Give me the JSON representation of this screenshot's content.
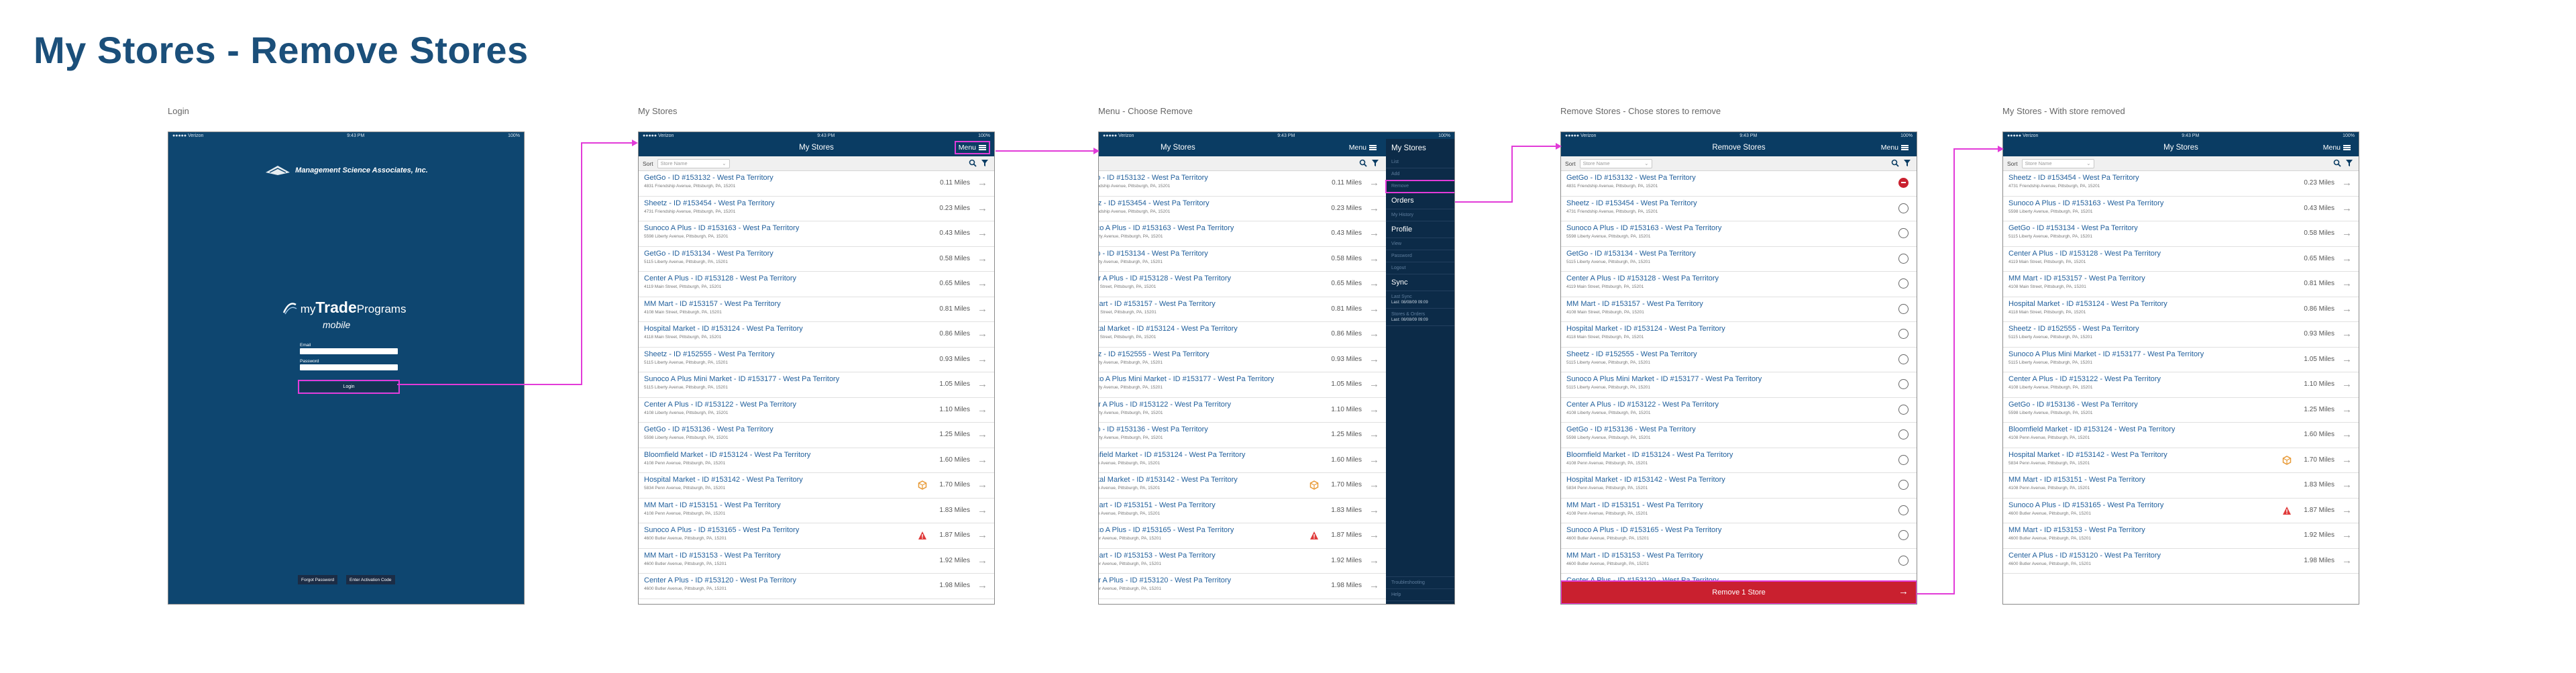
{
  "board_title": "My Stores - Remove Stores",
  "steps": [
    "Login",
    "My Stores",
    "Menu - Choose Remove",
    "Remove Stores - Chose stores to remove",
    "My Stores - With store removed"
  ],
  "status_bar": {
    "carrier": "●●●●● Verizon",
    "time": "9:43 PM",
    "battery": "100%"
  },
  "login": {
    "company": "Management Science Associates, Inc.",
    "brand_pre": "my",
    "brand_bold": "Trade",
    "brand_post": "Programs",
    "sub": "mobile",
    "email_label": "Email",
    "password_label": "Password",
    "login_button": "Login",
    "forgot_button": "Forgot Password",
    "activation_button": "Enter Activation Code"
  },
  "my_stores": {
    "title": "My Stores",
    "menu_label": "Menu",
    "sort_label": "Sort",
    "sort_placeholder": "Store Name"
  },
  "remove_screen": {
    "title": "Remove Stores",
    "remove_button": "Remove 1 Store"
  },
  "drawer": {
    "title": "My Stores",
    "items": [
      {
        "label": "List",
        "big": false,
        "hl": false
      },
      {
        "label": "Add",
        "big": false,
        "hl": false
      },
      {
        "label": "Remove",
        "big": false,
        "hl": true
      },
      {
        "label": "Orders",
        "big": true,
        "hl": false
      },
      {
        "label": "My History",
        "big": false,
        "hl": false
      },
      {
        "label": "Profile",
        "big": true,
        "hl": false
      },
      {
        "label": "View",
        "big": false,
        "hl": false
      },
      {
        "label": "Password",
        "big": false,
        "hl": false
      },
      {
        "label": "Logout",
        "big": false,
        "hl": false
      },
      {
        "label": "Sync",
        "big": true,
        "hl": false
      },
      {
        "label": "Last Sync",
        "big": false,
        "hl": false,
        "sub": "Last: 08/08/09 09:09"
      },
      {
        "label": "Stores & Orders",
        "big": false,
        "hl": false,
        "sub": "Last: 08/08/09 09:09"
      }
    ],
    "bottom": [
      "Troubleshooting",
      "Help"
    ]
  },
  "stores": [
    {
      "name": "GetGo - ID #153132 - West Pa Territory",
      "addr": "4831 Friendship Avenue, Pittsburgh, PA, 15201",
      "dist": "0.11 Miles"
    },
    {
      "name": "Sheetz - ID #153454 - West Pa Territory",
      "addr": "4731 Friendship Avenue, Pittsburgh, PA, 15201",
      "dist": "0.23 Miles"
    },
    {
      "name": "Sunoco A Plus - ID #153163 - West Pa Territory",
      "addr": "5598 Liberty Avenue, Pittsburgh, PA, 15201",
      "dist": "0.43 Miles"
    },
    {
      "name": "GetGo - ID #153134 - West Pa Territory",
      "addr": "5115 Liberty Avenue, Pittsburgh, PA, 15201",
      "dist": "0.58 Miles"
    },
    {
      "name": "Center A Plus - ID #153128 - West Pa Territory",
      "addr": "4119 Main Street, Pittsburgh, PA, 15201",
      "dist": "0.65 Miles"
    },
    {
      "name": "MM Mart - ID #153157 - West Pa Territory",
      "addr": "4108 Main Street, Pittsburgh, PA, 15201",
      "dist": "0.81 Miles"
    },
    {
      "name": "Hospital Market - ID #153124 - West Pa Territory",
      "addr": "4118 Main Street, Pittsburgh, PA, 15201",
      "dist": "0.86 Miles"
    },
    {
      "name": "Sheetz - ID #152555 - West Pa Territory",
      "addr": "5115 Liberty Avenue, Pittsburgh, PA, 15201",
      "dist": "0.93 Miles"
    },
    {
      "name": "Sunoco A Plus Mini Market - ID #153177 - West Pa Territory",
      "addr": "5115 Liberty Avenue, Pittsburgh, PA, 15201",
      "dist": "1.05 Miles"
    },
    {
      "name": "Center A Plus - ID #153122 - West Pa Territory",
      "addr": "4108 Liberty Avenue, Pittsburgh, PA, 15201",
      "dist": "1.10 Miles"
    },
    {
      "name": "GetGo - ID #153136 - West Pa Territory",
      "addr": "5598 Liberty Avenue, Pittsburgh, PA, 15201",
      "dist": "1.25 Miles"
    },
    {
      "name": "Bloomfield Market - ID #153124 - West Pa Territory",
      "addr": "4108 Penn Avenue, Pittsburgh, PA, 15201",
      "dist": "1.60 Miles"
    },
    {
      "name": "Hospital Market - ID #153142 - West Pa Territory",
      "addr": "5834 Penn Avenue, Pittsburgh, PA, 15201",
      "dist": "1.70 Miles",
      "flag": "cube"
    },
    {
      "name": "MM Mart - ID #153151 - West Pa Territory",
      "addr": "4108 Penn Avenue, Pittsburgh, PA, 15201",
      "dist": "1.83 Miles"
    },
    {
      "name": "Sunoco A Plus - ID #153165 - West Pa Territory",
      "addr": "4600 Butler Avenue, Pittsburgh, PA, 15201",
      "dist": "1.87 Miles",
      "flag": "warning"
    },
    {
      "name": "MM Mart - ID #153153 - West Pa Territory",
      "addr": "4600 Butler Avenue, Pittsburgh, PA, 15201",
      "dist": "1.92 Miles"
    },
    {
      "name": "Center A Plus - ID #153120 - West Pa Territory",
      "addr": "4600 Butler Avenue, Pittsburgh, PA, 15201",
      "dist": "1.98 Miles"
    }
  ],
  "remove_selected_index": 0,
  "colors": {
    "navy": "#0a3c63",
    "link": "#1f5e9b",
    "remove_red": "#c9202f",
    "annotation": "#e23bd8",
    "warning": "#e03a3a",
    "cube": "#e89a36"
  }
}
